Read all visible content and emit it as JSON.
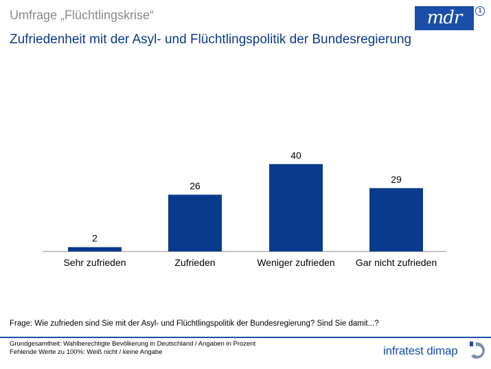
{
  "header": {
    "supertitle": "Umfrage „Flüchtlingskrise“",
    "title": "Zufriedenheit mit der Asyl- und Flüchtlingspolitik der Bundesregierung"
  },
  "logos": {
    "broadcaster": "mdr",
    "ard_mark": "1",
    "institute": "infratest dimap"
  },
  "chart_data": {
    "type": "bar",
    "title": "Zufriedenheit mit der Asyl- und Flüchtlingspolitik der Bundesregierung",
    "categories": [
      "Sehr zufrieden",
      "Zufrieden",
      "Weniger zufrieden",
      "Gar nicht zufrieden"
    ],
    "values": [
      2,
      26,
      40,
      29
    ],
    "data_labels": [
      "2",
      "26",
      "40",
      "29"
    ],
    "xlabel": "",
    "ylabel": "",
    "ylim": [
      0,
      40
    ],
    "grid": false,
    "color": "#0a3a8c"
  },
  "notes": {
    "question": "Frage: Wie zufrieden sind Sie mit der Asyl- und Flüchtlingspolitik der Bundesregierung? Sind Sie damit...?",
    "population": "Grundgesamtheit: Wahlberechtigte Bevölkerung in Deutschland / Angaben in Prozent",
    "missing": "Fehlende Werte zu 100%: Weiß nicht / keine Angabe"
  }
}
